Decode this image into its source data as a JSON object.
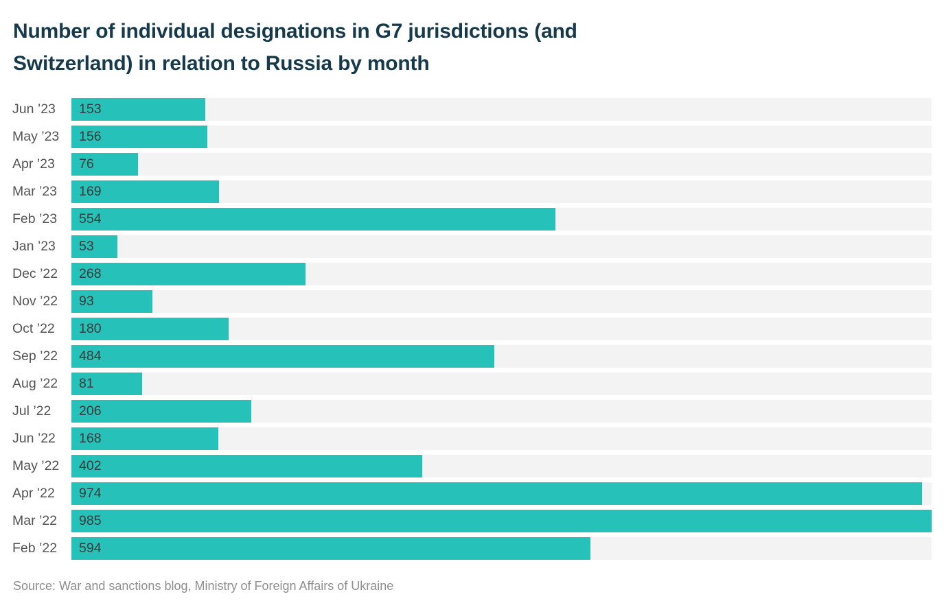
{
  "title": {
    "full": "Number of individual designations in G7 jurisdictions (and Switzerland) in relation to Russia by month",
    "line1": "Number of individual designations in G7 jurisdictions (and",
    "line2": "Switzerland) in relation to Russia by month"
  },
  "source": "Source: War and sanctions blog, Ministry of Foreign Affairs of Ukraine",
  "colors": {
    "bar": "#26c1b8",
    "track": "#f3f3f3",
    "title_text": "#16394b",
    "category_label": "#545454",
    "value_label": "#3b3b3b",
    "source_text": "#8e8e8e",
    "background": "#ffffff"
  },
  "chart_data": {
    "type": "bar",
    "orientation": "horizontal",
    "title": "Number of individual designations in G7 jurisdictions (and Switzerland) in relation to Russia by month",
    "xlabel": "",
    "ylabel": "",
    "xlim": [
      0,
      985
    ],
    "grid": false,
    "legend": "none",
    "value_labels": "inside-bar-start",
    "categories": [
      "Jun ’23",
      "May ’23",
      "Apr ’23",
      "Mar ’23",
      "Feb ’23",
      "Jan ’23",
      "Dec ’22",
      "Nov ’22",
      "Oct ’22",
      "Sep ’22",
      "Aug ’22",
      "Jul ’22",
      "Jun ’22",
      "May ’22",
      "Apr ’22",
      "Mar ’22",
      "Feb ’22"
    ],
    "values": [
      153,
      156,
      76,
      169,
      554,
      53,
      268,
      93,
      180,
      484,
      81,
      206,
      168,
      402,
      974,
      985,
      594
    ],
    "max_scale": 985
  }
}
